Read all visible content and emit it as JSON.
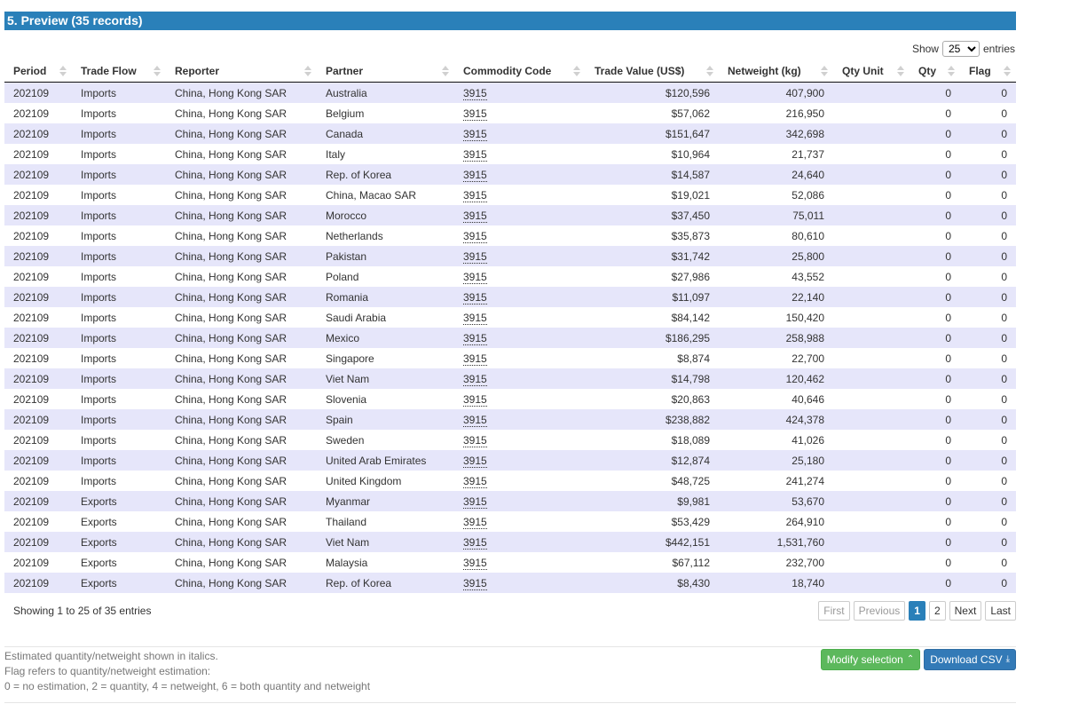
{
  "section": {
    "title": "5. Preview (35 records)"
  },
  "length": {
    "show_label": "Show",
    "selected": "25",
    "entries_label": "entries"
  },
  "table": {
    "columns": [
      "Period",
      "Trade Flow",
      "Reporter",
      "Partner",
      "Commodity Code",
      "Trade Value (US$)",
      "Netweight (kg)",
      "Qty Unit",
      "Qty",
      "Flag"
    ],
    "rows": [
      [
        "202109",
        "Imports",
        "China, Hong Kong SAR",
        "Australia",
        "3915",
        "$120,596",
        "407,900",
        "",
        "0",
        "0"
      ],
      [
        "202109",
        "Imports",
        "China, Hong Kong SAR",
        "Belgium",
        "3915",
        "$57,062",
        "216,950",
        "",
        "0",
        "0"
      ],
      [
        "202109",
        "Imports",
        "China, Hong Kong SAR",
        "Canada",
        "3915",
        "$151,647",
        "342,698",
        "",
        "0",
        "0"
      ],
      [
        "202109",
        "Imports",
        "China, Hong Kong SAR",
        "Italy",
        "3915",
        "$10,964",
        "21,737",
        "",
        "0",
        "0"
      ],
      [
        "202109",
        "Imports",
        "China, Hong Kong SAR",
        "Rep. of Korea",
        "3915",
        "$14,587",
        "24,640",
        "",
        "0",
        "0"
      ],
      [
        "202109",
        "Imports",
        "China, Hong Kong SAR",
        "China, Macao SAR",
        "3915",
        "$19,021",
        "52,086",
        "",
        "0",
        "0"
      ],
      [
        "202109",
        "Imports",
        "China, Hong Kong SAR",
        "Morocco",
        "3915",
        "$37,450",
        "75,011",
        "",
        "0",
        "0"
      ],
      [
        "202109",
        "Imports",
        "China, Hong Kong SAR",
        "Netherlands",
        "3915",
        "$35,873",
        "80,610",
        "",
        "0",
        "0"
      ],
      [
        "202109",
        "Imports",
        "China, Hong Kong SAR",
        "Pakistan",
        "3915",
        "$31,742",
        "25,800",
        "",
        "0",
        "0"
      ],
      [
        "202109",
        "Imports",
        "China, Hong Kong SAR",
        "Poland",
        "3915",
        "$27,986",
        "43,552",
        "",
        "0",
        "0"
      ],
      [
        "202109",
        "Imports",
        "China, Hong Kong SAR",
        "Romania",
        "3915",
        "$11,097",
        "22,140",
        "",
        "0",
        "0"
      ],
      [
        "202109",
        "Imports",
        "China, Hong Kong SAR",
        "Saudi Arabia",
        "3915",
        "$84,142",
        "150,420",
        "",
        "0",
        "0"
      ],
      [
        "202109",
        "Imports",
        "China, Hong Kong SAR",
        "Mexico",
        "3915",
        "$186,295",
        "258,988",
        "",
        "0",
        "0"
      ],
      [
        "202109",
        "Imports",
        "China, Hong Kong SAR",
        "Singapore",
        "3915",
        "$8,874",
        "22,700",
        "",
        "0",
        "0"
      ],
      [
        "202109",
        "Imports",
        "China, Hong Kong SAR",
        "Viet Nam",
        "3915",
        "$14,798",
        "120,462",
        "",
        "0",
        "0"
      ],
      [
        "202109",
        "Imports",
        "China, Hong Kong SAR",
        "Slovenia",
        "3915",
        "$20,863",
        "40,646",
        "",
        "0",
        "0"
      ],
      [
        "202109",
        "Imports",
        "China, Hong Kong SAR",
        "Spain",
        "3915",
        "$238,882",
        "424,378",
        "",
        "0",
        "0"
      ],
      [
        "202109",
        "Imports",
        "China, Hong Kong SAR",
        "Sweden",
        "3915",
        "$18,089",
        "41,026",
        "",
        "0",
        "0"
      ],
      [
        "202109",
        "Imports",
        "China, Hong Kong SAR",
        "United Arab Emirates",
        "3915",
        "$12,874",
        "25,180",
        "",
        "0",
        "0"
      ],
      [
        "202109",
        "Imports",
        "China, Hong Kong SAR",
        "United Kingdom",
        "3915",
        "$48,725",
        "241,274",
        "",
        "0",
        "0"
      ],
      [
        "202109",
        "Exports",
        "China, Hong Kong SAR",
        "Myanmar",
        "3915",
        "$9,981",
        "53,670",
        "",
        "0",
        "0"
      ],
      [
        "202109",
        "Exports",
        "China, Hong Kong SAR",
        "Thailand",
        "3915",
        "$53,429",
        "264,910",
        "",
        "0",
        "0"
      ],
      [
        "202109",
        "Exports",
        "China, Hong Kong SAR",
        "Viet Nam",
        "3915",
        "$442,151",
        "1,531,760",
        "",
        "0",
        "0"
      ],
      [
        "202109",
        "Exports",
        "China, Hong Kong SAR",
        "Malaysia",
        "3915",
        "$67,112",
        "232,700",
        "",
        "0",
        "0"
      ],
      [
        "202109",
        "Exports",
        "China, Hong Kong SAR",
        "Rep. of Korea",
        "3915",
        "$8,430",
        "18,740",
        "",
        "0",
        "0"
      ]
    ]
  },
  "info": {
    "text": "Showing 1 to 25 of 35 entries"
  },
  "pagination": {
    "first": "First",
    "previous": "Previous",
    "page1": "1",
    "page2": "2",
    "next": "Next",
    "last": "Last"
  },
  "notes": {
    "line1": "Estimated quantity/netweight shown in italics.",
    "line2": "Flag refers to quantity/netweight estimation:",
    "line3": "0 = no estimation, 2 = quantity, 4 = netweight, 6 = both quantity and netweight"
  },
  "actions": {
    "modify": "Modify selection",
    "download": "Download CSV"
  },
  "colors": {
    "header_bg": "#2a80b9",
    "stripe": "#e6e6fa",
    "green": "#5cb85c",
    "blue": "#337ab7"
  },
  "icons": {
    "modify": "chevron-up-double-icon",
    "download": "download-icon"
  }
}
